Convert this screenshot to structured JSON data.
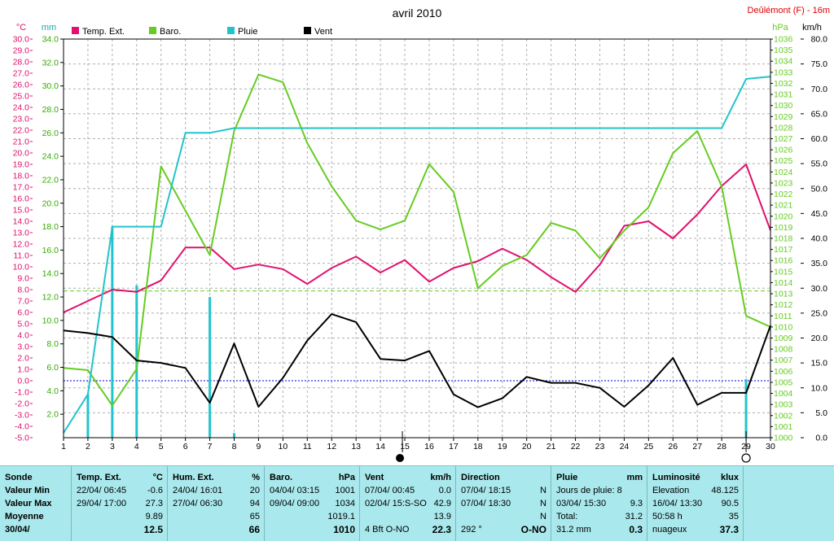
{
  "title": "avril 2010",
  "station": "Deûlémont (F) - 16m",
  "units": {
    "temp": "°C",
    "rain_mm": "mm",
    "pressure": "hPa",
    "wind": "km/h"
  },
  "legend": [
    {
      "label": "Temp. Ext.",
      "color": "#e0106e"
    },
    {
      "label": "Baro.",
      "color": "#66cc22"
    },
    {
      "label": "Pluie",
      "color": "#22c4cc"
    },
    {
      "label": "Vent",
      "color": "#000000"
    }
  ],
  "chart_data": {
    "type": "line",
    "x": [
      1,
      2,
      3,
      4,
      5,
      6,
      7,
      8,
      9,
      10,
      11,
      12,
      13,
      14,
      15,
      16,
      17,
      18,
      19,
      20,
      21,
      22,
      23,
      24,
      25,
      26,
      27,
      28,
      29,
      30
    ],
    "xlim": [
      1,
      30
    ],
    "axes": {
      "temp_c": {
        "ylim": [
          -5,
          30
        ],
        "ticks": [
          -5,
          -4,
          -3,
          -2,
          -1,
          0,
          1,
          2,
          3,
          4,
          5,
          6,
          7,
          8,
          9,
          10,
          11,
          12,
          13,
          14,
          15,
          16,
          17,
          18,
          19,
          20,
          21,
          22,
          23,
          24,
          25,
          26,
          27,
          28,
          29,
          30
        ],
        "tick_format": 1
      },
      "rain_mm": {
        "ylim": [
          0,
          34
        ],
        "ticks": [
          2,
          4,
          6,
          8,
          10,
          12,
          14,
          16,
          18,
          20,
          22,
          24,
          26,
          28,
          30,
          32,
          34
        ],
        "tick_format": 1
      },
      "pressure_hpa": {
        "ylim": [
          1000,
          1036
        ],
        "ticks": [
          1000,
          1001,
          1002,
          1003,
          1004,
          1005,
          1006,
          1007,
          1008,
          1009,
          1010,
          1011,
          1012,
          1013,
          1014,
          1015,
          1016,
          1017,
          1018,
          1019,
          1020,
          1021,
          1022,
          1023,
          1024,
          1025,
          1026,
          1027,
          1028,
          1029,
          1030,
          1031,
          1032,
          1033,
          1034,
          1035,
          1036
        ],
        "tick_format": 0
      },
      "wind_kmh": {
        "ylim": [
          0,
          80
        ],
        "ticks": [
          0,
          5,
          10,
          15,
          20,
          25,
          30,
          35,
          40,
          45,
          50,
          55,
          60,
          65,
          70,
          75,
          80
        ],
        "tick_format": 1
      }
    },
    "series": [
      {
        "name": "Temp. Ext.",
        "axis": "temp_c",
        "color": "#e0106e",
        "values": [
          6.0,
          7.0,
          8.0,
          7.8,
          8.8,
          11.7,
          11.7,
          9.8,
          10.2,
          9.8,
          8.5,
          9.9,
          10.9,
          9.5,
          10.6,
          8.7,
          9.9,
          10.5,
          11.6,
          10.6,
          9.1,
          7.8,
          10.2,
          13.6,
          14.0,
          12.5,
          14.6,
          17.1,
          19.0,
          13.2
        ]
      },
      {
        "name": "Baro.",
        "axis": "pressure_hpa",
        "color": "#66cc22",
        "values": [
          1006.3,
          1006.1,
          1002.9,
          1006.2,
          1024.5,
          1020.5,
          1016.5,
          1027.7,
          1032.8,
          1032.1,
          1026.6,
          1022.7,
          1019.6,
          1018.8,
          1019.6,
          1024.7,
          1022.2,
          1013.5,
          1015.5,
          1016.5,
          1019.4,
          1018.7,
          1016.2,
          1018.7,
          1020.8,
          1025.7,
          1027.7,
          1022.7,
          1011.0,
          1010.0
        ]
      },
      {
        "name": "Pluie",
        "axis": "rain_mm",
        "color": "#22c4cc",
        "values": [
          0.4,
          3.7,
          18.0,
          18.0,
          18.0,
          26.0,
          26.0,
          26.4,
          26.4,
          26.4,
          26.4,
          26.4,
          26.4,
          26.4,
          26.4,
          26.4,
          26.4,
          26.4,
          26.4,
          26.4,
          26.4,
          26.4,
          26.4,
          26.4,
          26.4,
          26.4,
          26.4,
          26.4,
          30.6,
          30.8
        ]
      },
      {
        "name": "Vent",
        "axis": "wind_kmh",
        "color": "#000000",
        "values": [
          21.5,
          21.0,
          20.2,
          15.5,
          15.0,
          14.0,
          7.0,
          18.9,
          6.2,
          12.0,
          19.5,
          24.8,
          23.2,
          15.8,
          15.5,
          17.4,
          8.7,
          6.1,
          7.9,
          12.2,
          11.0,
          11.0,
          10.0,
          6.2,
          10.5,
          16.0,
          6.6,
          9.0,
          9.0,
          22.5
        ]
      }
    ],
    "daily_rain_bars": [
      {
        "day": 2,
        "value": 3.7
      },
      {
        "day": 3,
        "value": 18.0
      },
      {
        "day": 4,
        "value": 13.0
      },
      {
        "day": 7,
        "value": 12.0
      },
      {
        "day": 8,
        "value": 0.4
      },
      {
        "day": 29,
        "value": 5.0
      }
    ],
    "reference_lines": [
      {
        "axis": "temp_c",
        "value": 0,
        "color": "#0000cc",
        "style": "dotted"
      },
      {
        "axis": "pressure_hpa",
        "value": 1013.25,
        "color": "#66cc22",
        "style": "dashed"
      }
    ],
    "moon_phases": [
      {
        "day": 14.9,
        "phase": "full"
      },
      {
        "day": 29,
        "phase": "new"
      }
    ],
    "grid": true
  },
  "summary": {
    "sonde": {
      "title": "Sonde",
      "rows": [
        "Valeur Min",
        "Valeur Max",
        "Moyenne",
        "30/04/"
      ]
    },
    "temp": {
      "title": "Temp. Ext.",
      "unit": "°C",
      "min_date": "22/04/ 06:45",
      "min": "-0.6",
      "max_date": "29/04/ 17:00",
      "max": "27.3",
      "avg": "9.89",
      "current": "12.5"
    },
    "hum": {
      "title": "Hum. Ext.",
      "unit": "%",
      "min_date": "24/04/ 16:01",
      "min": "20",
      "max_date": "27/04/ 06:30",
      "max": "94",
      "avg": "65",
      "current": "66"
    },
    "baro": {
      "title": "Baro.",
      "unit": "hPa",
      "min_date": "04/04/ 03:15",
      "min": "1001",
      "max_date": "09/04/ 09:00",
      "max": "1034",
      "avg": "1019.1",
      "current": "1010"
    },
    "vent": {
      "title": "Vent",
      "unit": "km/h",
      "min_date": "07/04/ 00:45",
      "min": "0.0",
      "max_date": "02/04/ 15:S-SO",
      "max": "42.9",
      "avg": "13.9",
      "current_bft": "4 Bft O-NO",
      "current": "22.3"
    },
    "direction": {
      "title": "Direction",
      "min_date": "07/04/ 18:15",
      "min": "N",
      "max_date": "07/04/ 18:30",
      "max": "N",
      "avg": "N",
      "current_deg": "292 °",
      "current": "O-NO"
    },
    "pluie": {
      "title": "Pluie",
      "unit": "mm",
      "days_label": "Jours de pluie: 8",
      "max_date": "03/04/ 15:30",
      "max": "9.3",
      "total_label": "Total:",
      "total": "31.2",
      "current_mm": "31.2 mm",
      "current": "0.3"
    },
    "lum": {
      "title": "Luminosité",
      "unit": "klux",
      "elev_label": "Elevation",
      "elev": "48.125",
      "max_date": "16/04/ 13:30",
      "max": "90.5",
      "hours": "50:58 h",
      "hours_val": "35",
      "sky": "nuageux",
      "current": "37.3"
    }
  }
}
